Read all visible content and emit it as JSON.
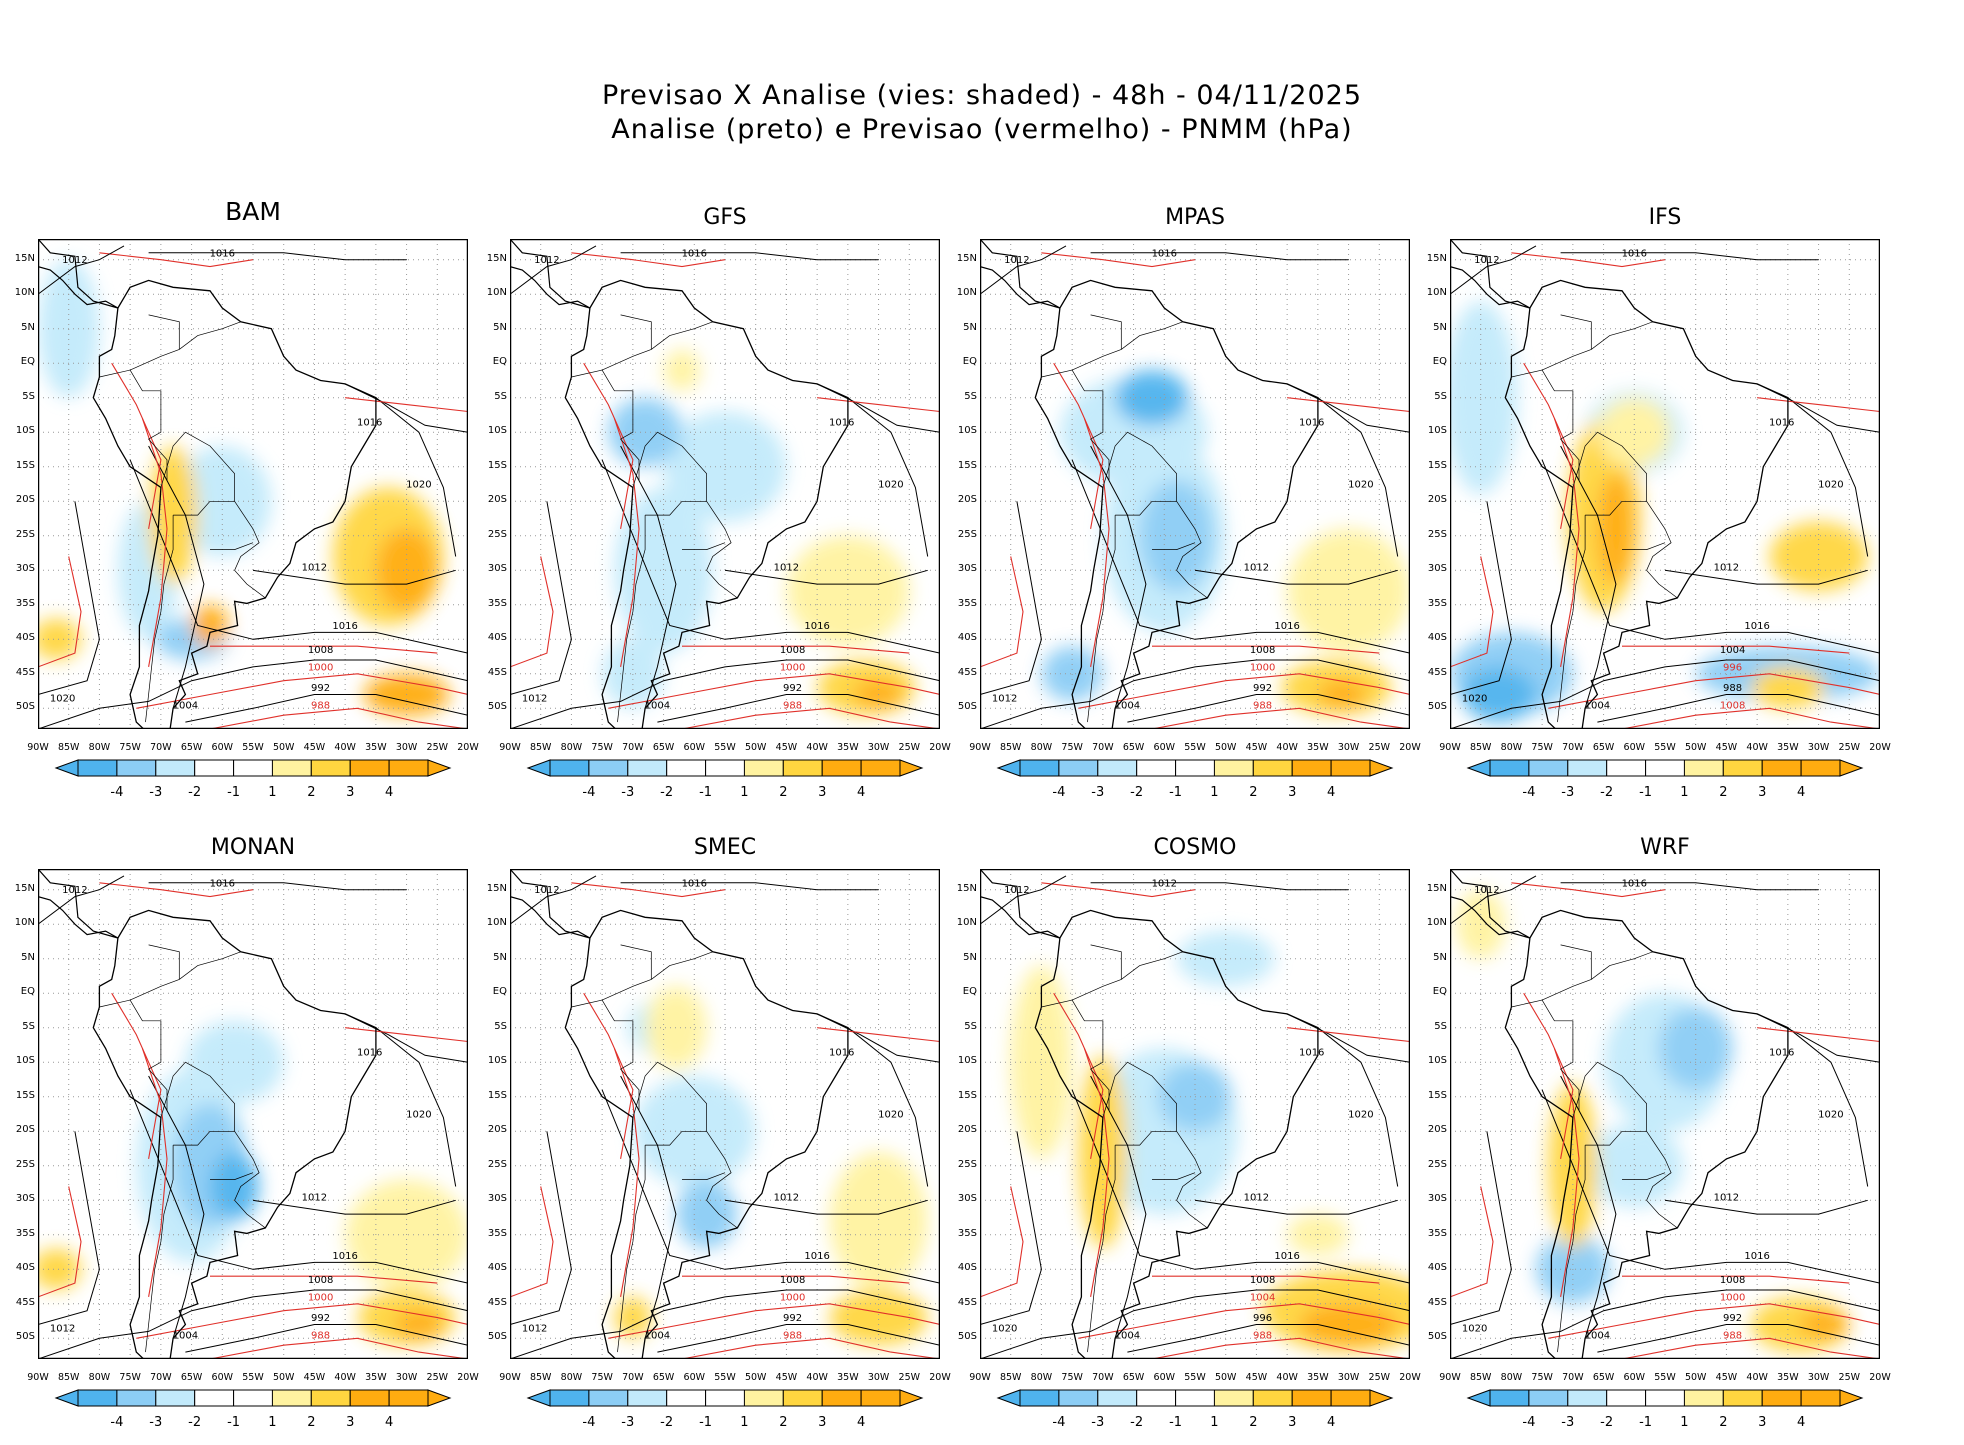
{
  "title_line1": "Previsao X Analise (vies: shaded) - 48h - 04/11/2025",
  "title_line2": "Analise (preto) e Previsao (vermelho) - PNMM (hPa)",
  "colors": {
    "neg4": "#4fb3ee",
    "neg3": "#8ccdf5",
    "neg2": "#c2eafb",
    "neg1": "#ffffff",
    "pos1": "#ffffff",
    "pos2": "#fff3a0",
    "pos3": "#ffd640",
    "pos4": "#ffac10",
    "analysis_contour": "#000000",
    "forecast_contour": "#e0302a",
    "land_outline": "#000000"
  },
  "axes": {
    "lat_labels": [
      "15N",
      "10N",
      "5N",
      "EQ",
      "5S",
      "10S",
      "15S",
      "20S",
      "25S",
      "30S",
      "35S",
      "40S",
      "45S",
      "50S"
    ],
    "lon_labels": [
      "90W",
      "85W",
      "80W",
      "75W",
      "70W",
      "65W",
      "60W",
      "55W",
      "50W",
      "45W",
      "40W",
      "35W",
      "30W",
      "25W",
      "20W"
    ]
  },
  "colorbar_labels": [
    "-4",
    "-3",
    "-2",
    "-1",
    "1",
    "2",
    "3",
    "4"
  ],
  "panels": [
    {
      "name": "BAM",
      "contours": {
        "c1": "1012",
        "c2": "1016",
        "c3": "1016",
        "c4": "1020",
        "c5": "1012",
        "c6": "1008",
        "c7": "1000",
        "c8": "992",
        "c9": "988",
        "c10": "1004",
        "c11": "1016",
        "c12": "1020"
      }
    },
    {
      "name": "GFS",
      "contours": {
        "c1": "1012",
        "c2": "1016",
        "c3": "1016",
        "c4": "1020",
        "c5": "1012",
        "c6": "1008",
        "c7": "1000",
        "c8": "992",
        "c9": "988",
        "c10": "1004",
        "c11": "1016",
        "c12": "1012"
      }
    },
    {
      "name": "MPAS",
      "contours": {
        "c1": "1012",
        "c2": "1016",
        "c3": "1016",
        "c4": "1020",
        "c5": "1012",
        "c6": "1008",
        "c7": "1000",
        "c8": "992",
        "c9": "988",
        "c10": "1004",
        "c11": "1016",
        "c12": "1012"
      }
    },
    {
      "name": "IFS",
      "contours": {
        "c1": "1012",
        "c2": "1016",
        "c3": "1016",
        "c4": "1020",
        "c5": "1012",
        "c6": "1004",
        "c7": "996",
        "c8": "988",
        "c9": "1008",
        "c10": "1004",
        "c11": "1016",
        "c12": "1020"
      }
    },
    {
      "name": "MONAN",
      "contours": {
        "c1": "1012",
        "c2": "1016",
        "c3": "1016",
        "c4": "1020",
        "c5": "1012",
        "c6": "1008",
        "c7": "1000",
        "c8": "992",
        "c9": "988",
        "c10": "1004",
        "c11": "1016",
        "c12": "1012"
      }
    },
    {
      "name": "SMEC",
      "contours": {
        "c1": "1012",
        "c2": "1016",
        "c3": "1016",
        "c4": "1020",
        "c5": "1012",
        "c6": "1008",
        "c7": "1000",
        "c8": "992",
        "c9": "988",
        "c10": "1004",
        "c11": "1016",
        "c12": "1012"
      }
    },
    {
      "name": "COSMO",
      "contours": {
        "c1": "1012",
        "c2": "1012",
        "c3": "1016",
        "c4": "1020",
        "c5": "1012",
        "c6": "1008",
        "c7": "1004",
        "c8": "996",
        "c9": "988",
        "c10": "1004",
        "c11": "1016",
        "c12": "1020"
      }
    },
    {
      "name": "WRF",
      "contours": {
        "c1": "1012",
        "c2": "1016",
        "c3": "1016",
        "c4": "1020",
        "c5": "1012",
        "c6": "1008",
        "c7": "1000",
        "c8": "992",
        "c9": "988",
        "c10": "1004",
        "c11": "1016",
        "c12": "1020"
      }
    }
  ]
}
